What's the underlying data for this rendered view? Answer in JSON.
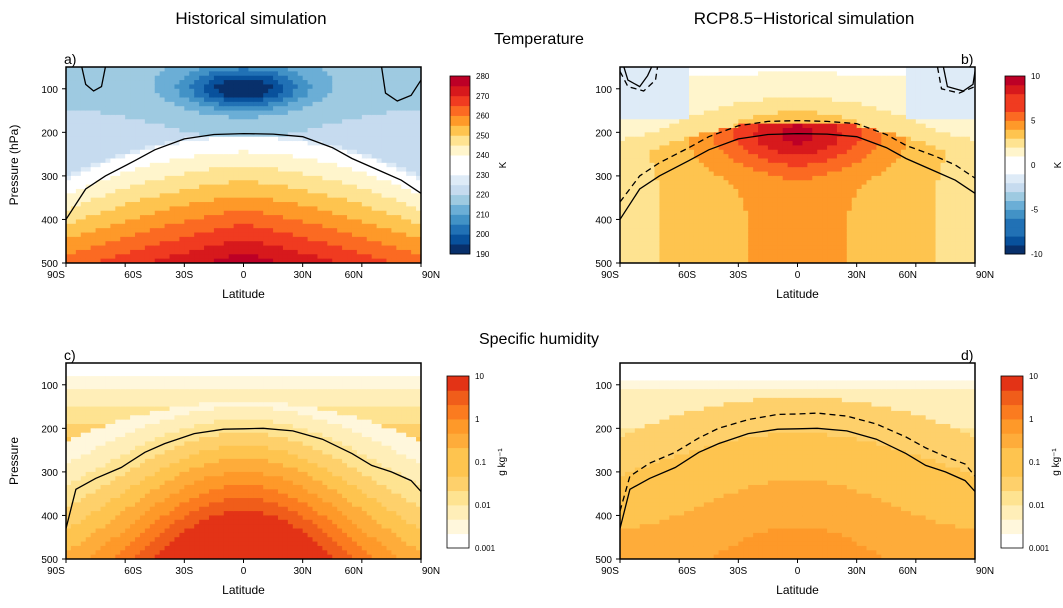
{
  "titles": {
    "left_column": "Historical simulation",
    "right_column": "RCP8.5−Historical simulation",
    "top_row": "Temperature",
    "bottom_row": "Specific humidity"
  },
  "colors": {
    "blue_red_scale": [
      "#08306b",
      "#08519c",
      "#2171b5",
      "#4292c6",
      "#6baed6",
      "#9ecae1",
      "#c6dbef",
      "#deebf7",
      "#ffffff",
      "#fff5cc",
      "#fee391",
      "#fec44f",
      "#fe9929",
      "#fb6a22",
      "#f03b20",
      "#d7191c",
      "#bd0026"
    ],
    "orange_scale": [
      "#ffffff",
      "#fff7dc",
      "#ffeeb8",
      "#fee391",
      "#fed06b",
      "#fec44f",
      "#feac3a",
      "#fe9929",
      "#fb7b1f",
      "#f05d1a",
      "#e33316"
    ]
  },
  "chart_data": [
    {
      "id": "a",
      "panel_label": "a)",
      "type": "heatmap",
      "variable": "Temperature",
      "title": "",
      "xlabel": "Latitude",
      "ylabel": "Pressure (hPa)",
      "xticks": [
        "90S",
        "60S",
        "30S",
        "0",
        "30N",
        "60N",
        "90N"
      ],
      "xtick_values": [
        -90,
        -60,
        -30,
        0,
        30,
        60,
        90
      ],
      "yticks": [
        "100",
        "200",
        "300",
        "400",
        "500"
      ],
      "ytick_values": [
        100,
        200,
        300,
        400,
        500
      ],
      "xlim": [
        -90,
        90
      ],
      "ylim": [
        500,
        50
      ],
      "colorbar": {
        "ticks": [
          "280",
          "270",
          "260",
          "250",
          "240",
          "230",
          "220",
          "210",
          "200",
          "190"
        ],
        "unit": "K",
        "levels": [
          190,
          195,
          200,
          205,
          210,
          215,
          220,
          225,
          230,
          235,
          240,
          245,
          250,
          255,
          260,
          265,
          270,
          275,
          280
        ]
      },
      "contours": [
        {
          "style": "solid",
          "points": [
            [
              -90,
              400
            ],
            [
              -80,
              330
            ],
            [
              -70,
              300
            ],
            [
              -55,
              265
            ],
            [
              -45,
              240
            ],
            [
              -30,
              215
            ],
            [
              -15,
              205
            ],
            [
              0,
              203
            ],
            [
              15,
              204
            ],
            [
              30,
              210
            ],
            [
              45,
              235
            ],
            [
              55,
              260
            ],
            [
              70,
              290
            ],
            [
              80,
              310
            ],
            [
              90,
              340
            ]
          ]
        },
        {
          "style": "solid",
          "points": [
            [
              -82,
              50
            ],
            [
              -80,
              90
            ],
            [
              -76,
              105
            ],
            [
              -72,
              95
            ],
            [
              -70,
              50
            ]
          ]
        },
        {
          "style": "solid",
          "points": [
            [
              70,
              50
            ],
            [
              72,
              110
            ],
            [
              78,
              128
            ],
            [
              85,
              115
            ],
            [
              90,
              80
            ]
          ]
        }
      ]
    },
    {
      "id": "b",
      "panel_label": "b)",
      "type": "heatmap",
      "variable": "Temperature",
      "title": "",
      "xlabel": "Latitude",
      "ylabel": "",
      "xticks": [
        "90S",
        "60S",
        "30S",
        "0",
        "30N",
        "60N",
        "90N"
      ],
      "xtick_values": [
        -90,
        -60,
        -30,
        0,
        30,
        60,
        90
      ],
      "yticks": [
        "100",
        "200",
        "300",
        "400",
        "500"
      ],
      "ytick_values": [
        100,
        200,
        300,
        400,
        500
      ],
      "xlim": [
        -90,
        90
      ],
      "ylim": [
        500,
        50
      ],
      "colorbar": {
        "ticks": [
          "10",
          "5",
          "0",
          "-5",
          "-10"
        ],
        "unit": "K",
        "levels": [
          -10,
          -9,
          -8,
          -7,
          -6,
          -5,
          -4,
          -3,
          -2,
          -1,
          0,
          1,
          2,
          3,
          4,
          5,
          6,
          7,
          8,
          9,
          10
        ]
      },
      "contours": [
        {
          "style": "solid",
          "points": [
            [
              -90,
              400
            ],
            [
              -80,
              330
            ],
            [
              -70,
              300
            ],
            [
              -55,
              265
            ],
            [
              -45,
              240
            ],
            [
              -30,
              215
            ],
            [
              -15,
              205
            ],
            [
              0,
              203
            ],
            [
              15,
              204
            ],
            [
              30,
              210
            ],
            [
              45,
              235
            ],
            [
              55,
              260
            ],
            [
              70,
              290
            ],
            [
              80,
              310
            ],
            [
              90,
              340
            ]
          ]
        },
        {
          "style": "dashed",
          "points": [
            [
              -90,
              360
            ],
            [
              -80,
              300
            ],
            [
              -70,
              270
            ],
            [
              -55,
              235
            ],
            [
              -45,
              210
            ],
            [
              -30,
              185
            ],
            [
              -15,
              175
            ],
            [
              0,
              173
            ],
            [
              15,
              175
            ],
            [
              30,
              180
            ],
            [
              45,
              205
            ],
            [
              55,
              230
            ],
            [
              70,
              255
            ],
            [
              80,
              275
            ],
            [
              90,
              305
            ]
          ]
        },
        {
          "style": "solid",
          "points": [
            [
              -88,
              50
            ],
            [
              -86,
              80
            ],
            [
              -80,
              95
            ],
            [
              -76,
              70
            ],
            [
              -74,
              50
            ]
          ]
        },
        {
          "style": "dashed",
          "points": [
            [
              -90,
              60
            ],
            [
              -86,
              95
            ],
            [
              -78,
              105
            ],
            [
              -72,
              80
            ],
            [
              -71,
              50
            ]
          ]
        },
        {
          "style": "solid",
          "points": [
            [
              74,
              50
            ],
            [
              76,
              95
            ],
            [
              84,
              105
            ],
            [
              89,
              90
            ],
            [
              90,
              60
            ]
          ]
        },
        {
          "style": "dashed",
          "points": [
            [
              71,
              50
            ],
            [
              73,
              100
            ],
            [
              82,
              110
            ],
            [
              90,
              95
            ]
          ]
        }
      ]
    },
    {
      "id": "c",
      "panel_label": "c)",
      "type": "heatmap",
      "variable": "Specific humidity",
      "title": "",
      "xlabel": "Latitude",
      "ylabel": "Pressure",
      "xticks": [
        "90S",
        "60S",
        "30S",
        "0",
        "30N",
        "60N",
        "90N"
      ],
      "xtick_values": [
        -90,
        -60,
        -30,
        0,
        30,
        60,
        90
      ],
      "yticks": [
        "100",
        "200",
        "300",
        "400",
        "500"
      ],
      "ytick_values": [
        100,
        200,
        300,
        400,
        500
      ],
      "xlim": [
        -90,
        90
      ],
      "ylim": [
        500,
        50
      ],
      "colorbar": {
        "ticks": [
          "10",
          "1",
          "0.1",
          "0.01",
          "0.001"
        ],
        "unit": "g kg⁻¹",
        "levels": [
          0.001,
          0.002,
          0.005,
          0.01,
          0.02,
          0.05,
          0.1,
          0.2,
          0.5,
          1,
          2,
          5,
          10
        ]
      },
      "contours": [
        {
          "style": "solid",
          "points": [
            [
              -90,
              430
            ],
            [
              -85,
              340
            ],
            [
              -75,
              315
            ],
            [
              -62,
              290
            ],
            [
              -50,
              255
            ],
            [
              -40,
              235
            ],
            [
              -25,
              212
            ],
            [
              -10,
              202
            ],
            [
              0,
              201
            ],
            [
              10,
              200
            ],
            [
              25,
              206
            ],
            [
              40,
              225
            ],
            [
              55,
              258
            ],
            [
              65,
              285
            ],
            [
              75,
              300
            ],
            [
              85,
              320
            ],
            [
              90,
              345
            ]
          ]
        }
      ]
    },
    {
      "id": "d",
      "panel_label": "d)",
      "type": "heatmap",
      "variable": "Specific humidity",
      "title": "",
      "xlabel": "Latitude",
      "ylabel": "",
      "xticks": [
        "90S",
        "60S",
        "30S",
        "0",
        "30N",
        "60N",
        "90N"
      ],
      "xtick_values": [
        -90,
        -60,
        -30,
        0,
        30,
        60,
        90
      ],
      "yticks": [
        "100",
        "200",
        "300",
        "400",
        "500"
      ],
      "ytick_values": [
        100,
        200,
        300,
        400,
        500
      ],
      "xlim": [
        -90,
        90
      ],
      "ylim": [
        500,
        50
      ],
      "colorbar": {
        "ticks": [
          "10",
          "1",
          "0.1",
          "0.01",
          "0.001"
        ],
        "unit": "g kg⁻¹",
        "levels": [
          0.001,
          0.002,
          0.005,
          0.01,
          0.02,
          0.05,
          0.1,
          0.2,
          0.5,
          1,
          2,
          5,
          10
        ]
      },
      "contours": [
        {
          "style": "solid",
          "points": [
            [
              -90,
              430
            ],
            [
              -85,
              340
            ],
            [
              -75,
              315
            ],
            [
              -62,
              290
            ],
            [
              -50,
              255
            ],
            [
              -40,
              235
            ],
            [
              -25,
              212
            ],
            [
              -10,
              202
            ],
            [
              0,
              201
            ],
            [
              10,
              200
            ],
            [
              25,
              206
            ],
            [
              40,
              225
            ],
            [
              55,
              258
            ],
            [
              65,
              285
            ],
            [
              75,
              300
            ],
            [
              85,
              320
            ],
            [
              90,
              345
            ]
          ]
        },
        {
          "style": "dashed",
          "points": [
            [
              -90,
              390
            ],
            [
              -85,
              310
            ],
            [
              -75,
              280
            ],
            [
              -62,
              255
            ],
            [
              -50,
              222
            ],
            [
              -40,
              200
            ],
            [
              -25,
              180
            ],
            [
              -10,
              168
            ],
            [
              0,
              167
            ],
            [
              10,
              165
            ],
            [
              25,
              172
            ],
            [
              40,
              190
            ],
            [
              55,
              220
            ],
            [
              65,
              245
            ],
            [
              75,
              265
            ],
            [
              85,
              282
            ],
            [
              90,
              310
            ]
          ]
        }
      ]
    }
  ]
}
